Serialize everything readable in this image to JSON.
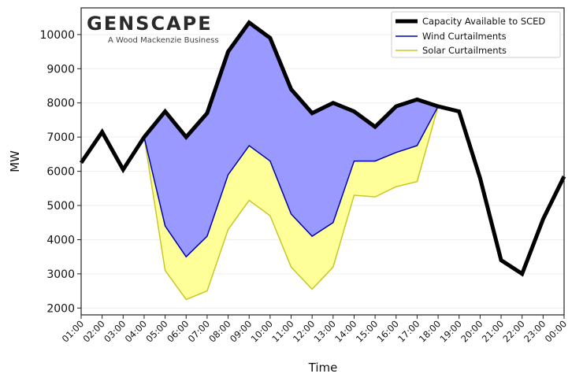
{
  "logo": {
    "brand": "GENSCAPE",
    "tagline": "A Wood Mackenzie Business"
  },
  "chart_data": {
    "type": "area",
    "title": "",
    "xlabel": "Time",
    "ylabel": "MW",
    "categories": [
      "01:00",
      "02:00",
      "03:00",
      "04:00",
      "05:00",
      "06:00",
      "07:00",
      "08:00",
      "09:00",
      "10:00",
      "11:00",
      "12:00",
      "13:00",
      "14:00",
      "15:00",
      "16:00",
      "17:00",
      "18:00",
      "19:00",
      "20:00",
      "21:00",
      "22:00",
      "23:00",
      "00:00"
    ],
    "yticks": [
      2000,
      3000,
      4000,
      5000,
      6000,
      7000,
      8000,
      9000,
      10000
    ],
    "ylim": [
      1800,
      10780
    ],
    "grid": true,
    "legend_position": "top-right",
    "series": [
      {
        "name": "Capacity Available to SCED",
        "color": "#000000",
        "values": [
          6250,
          7150,
          6050,
          7000,
          7750,
          7000,
          7700,
          9500,
          10350,
          9900,
          8400,
          7700,
          8000,
          7750,
          7300,
          7900,
          8100,
          7900,
          7750,
          5800,
          3400,
          3000,
          4600,
          5850
        ]
      },
      {
        "name": "Wind Curtailments",
        "color": "#0000b0",
        "fill": "#9999ff",
        "values": [
          null,
          null,
          null,
          7000,
          4400,
          3500,
          4100,
          5900,
          6750,
          6300,
          4750,
          4100,
          4500,
          6300,
          6300,
          6550,
          6750,
          7900,
          null,
          null,
          null,
          null,
          null,
          null
        ]
      },
      {
        "name": "Solar Curtailments",
        "color": "#c8c820",
        "fill": "#ffff99",
        "values": [
          null,
          null,
          null,
          7000,
          3100,
          2250,
          2500,
          4300,
          5150,
          4700,
          3200,
          2550,
          3200,
          5300,
          5250,
          5550,
          5700,
          7900,
          null,
          null,
          null,
          null,
          null,
          null
        ]
      }
    ]
  }
}
